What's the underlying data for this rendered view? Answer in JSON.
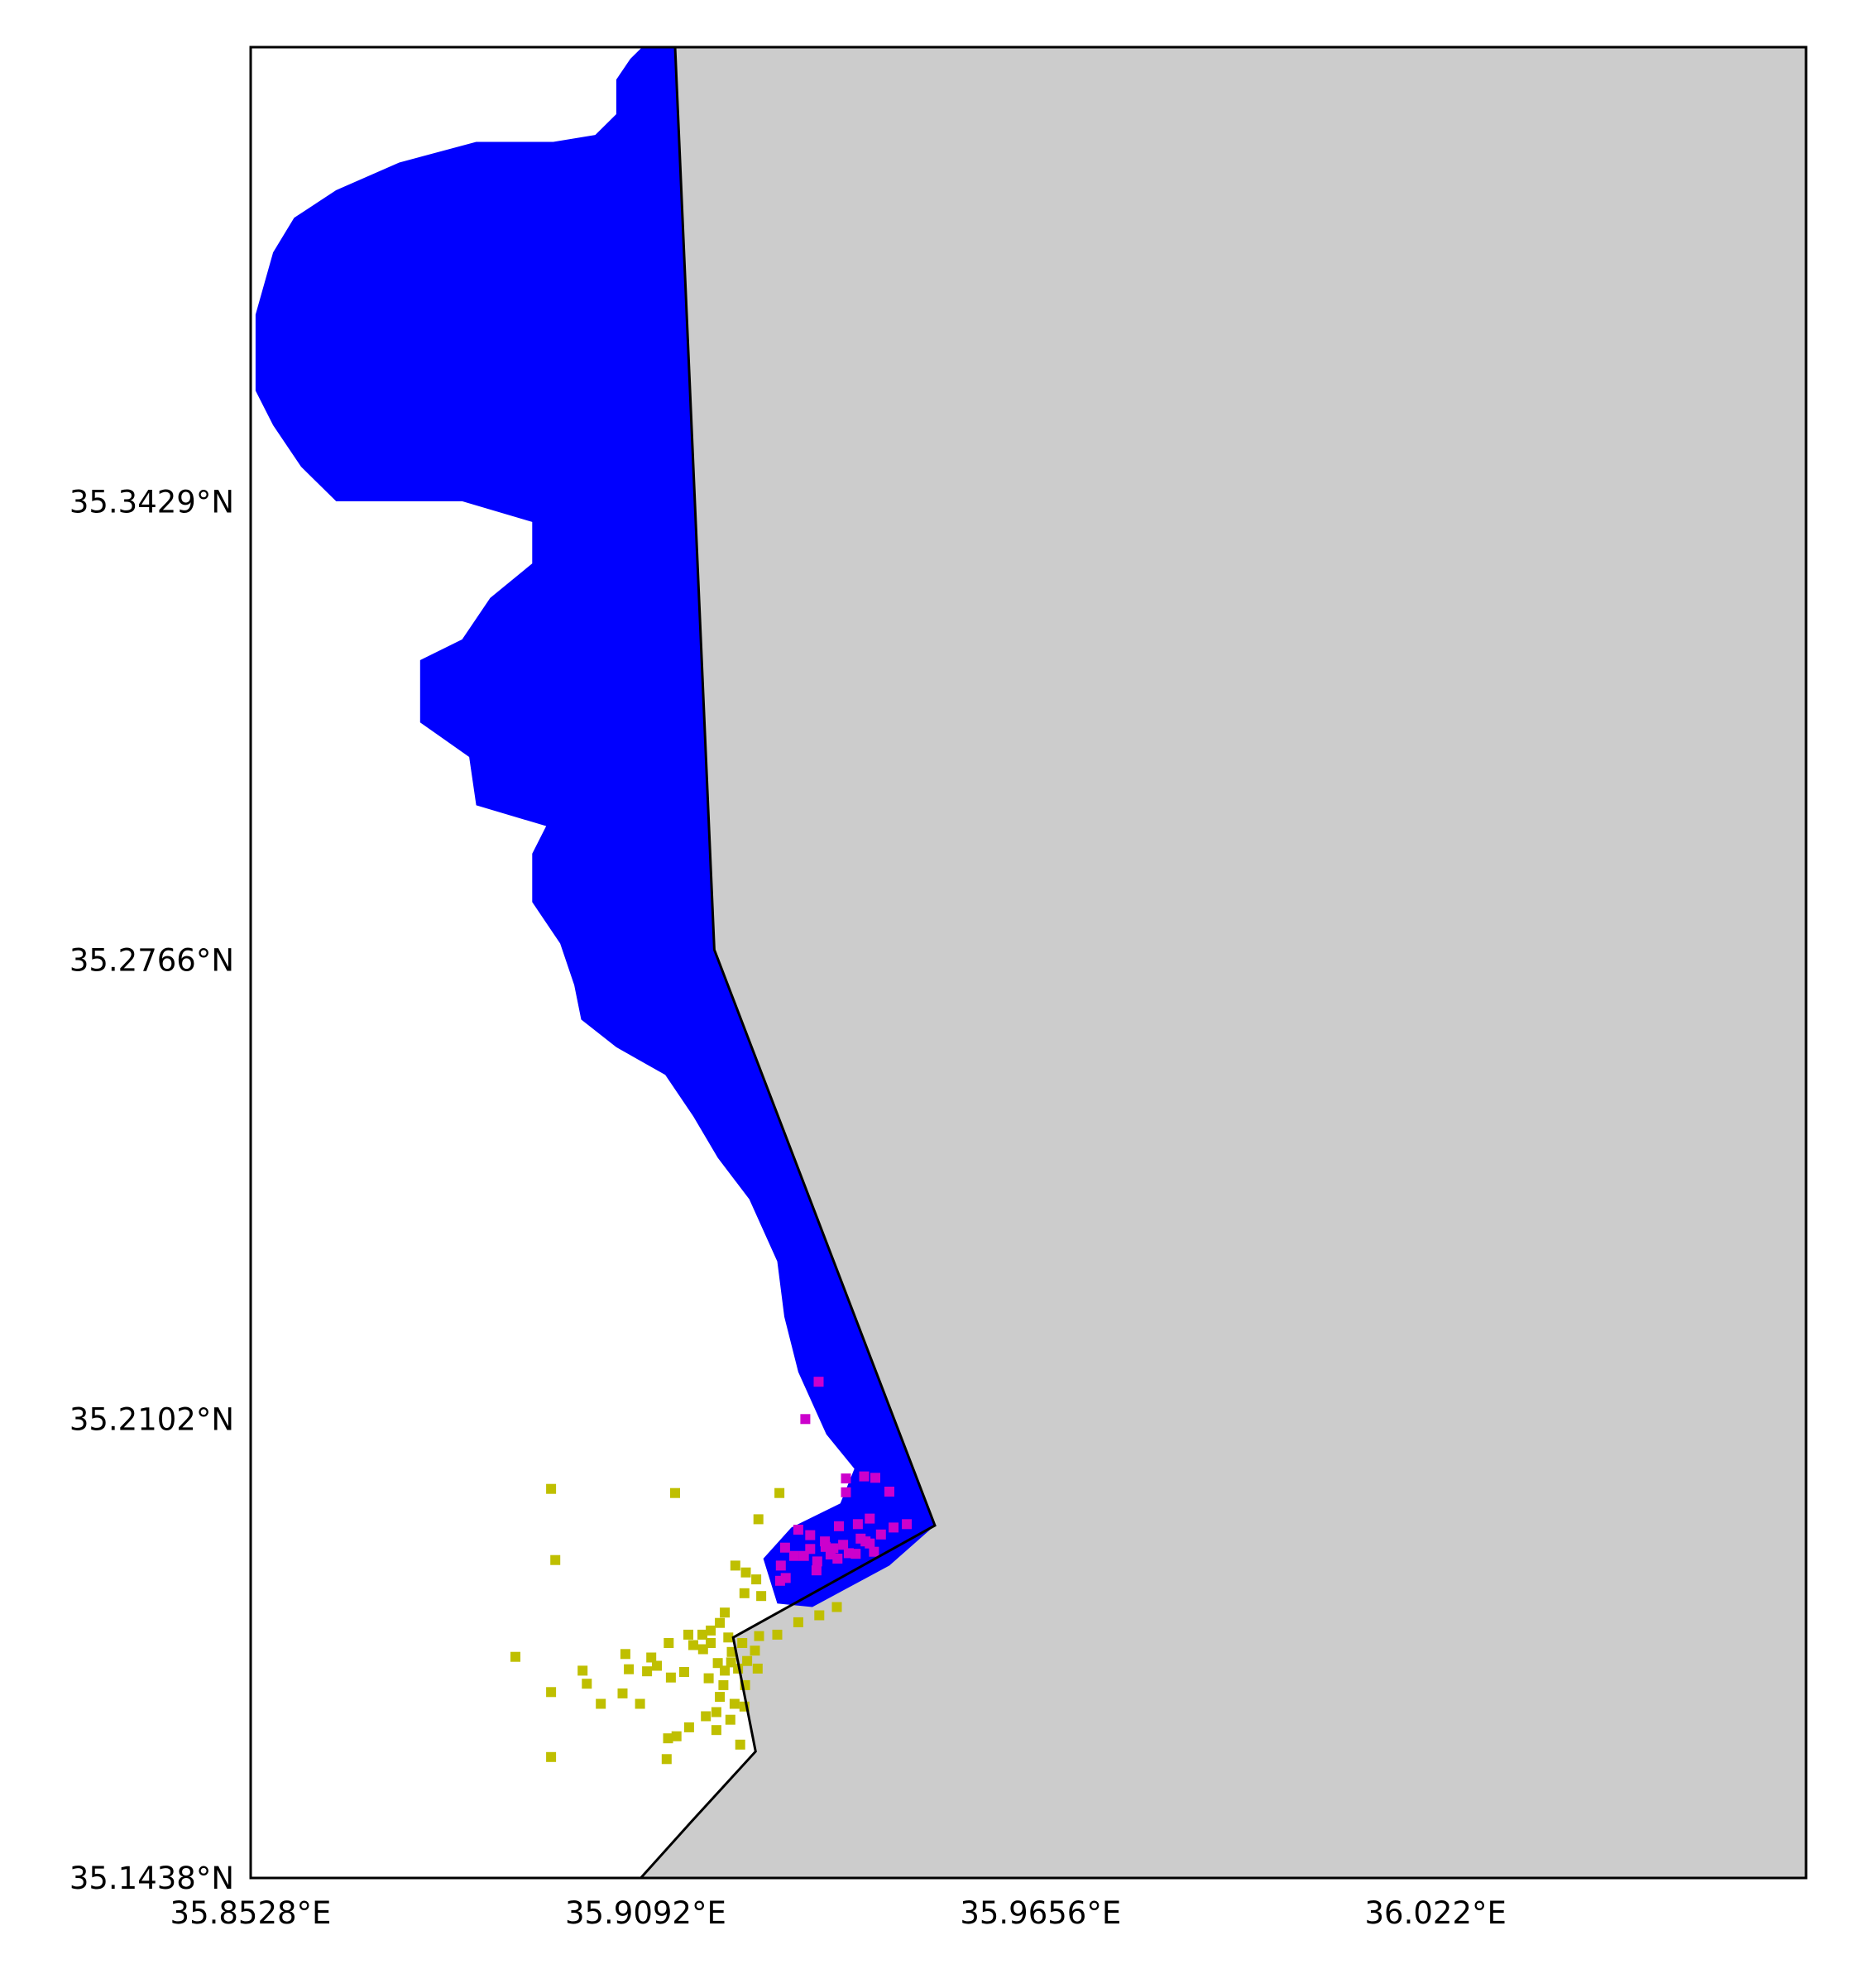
{
  "map": {
    "type": "geographic raster map",
    "projection_frame": "lon/lat",
    "extent": {
      "lon_min": 35.8528,
      "lon_max": 36.0749,
      "lat_min": 35.1438,
      "lat_max": 35.4087
    },
    "x_ticks": [
      {
        "value": 35.8528,
        "label": "35.8528°E"
      },
      {
        "value": 35.9092,
        "label": "35.9092°E"
      },
      {
        "value": 35.9656,
        "label": "35.9656°E"
      },
      {
        "value": 36.022,
        "label": "36.022°E"
      }
    ],
    "y_ticks": [
      {
        "value": 35.3429,
        "label": "35.3429°N"
      },
      {
        "value": 35.2766,
        "label": "35.2766°N"
      },
      {
        "value": 35.2102,
        "label": "35.2102°N"
      },
      {
        "value": 35.1438,
        "label": "35.1438°N"
      }
    ],
    "colors": {
      "land": "#cccccc",
      "water": "#ffffff",
      "class_blue": "#0000ff",
      "class_magenta": "#cc00cc",
      "class_olive": "#bfbf00",
      "coastline": "#000000"
    },
    "coastline_lonlat": [
      [
        35.9134,
        35.4087
      ],
      [
        35.919,
        35.2781
      ],
      [
        35.9505,
        35.1948
      ],
      [
        35.9217,
        35.1786
      ],
      [
        35.9249,
        35.1621
      ],
      [
        35.9157,
        35.1519
      ],
      [
        35.9085,
        35.1438
      ]
    ],
    "legend": "none",
    "grid": false
  },
  "chart_data": {
    "type": "scatter",
    "xlabel": "",
    "ylabel": "",
    "xlim": [
      35.8528,
      36.0749
    ],
    "ylim": [
      35.1438,
      35.4087
    ],
    "series": [
      {
        "color": "#0000ff",
        "description": "contiguous coastal band of classified cells along the shoreline",
        "outline_lonlat": [
          [
            35.9087,
            35.4087
          ],
          [
            35.9134,
            35.4087
          ],
          [
            35.919,
            35.2781
          ],
          [
            35.9505,
            35.1948
          ],
          [
            35.944,
            35.189
          ],
          [
            35.933,
            35.183
          ],
          [
            35.928,
            35.1835
          ],
          [
            35.926,
            35.19
          ],
          [
            35.93,
            35.1945
          ],
          [
            35.937,
            35.198
          ],
          [
            35.939,
            35.203
          ],
          [
            35.935,
            35.208
          ],
          [
            35.931,
            35.217
          ],
          [
            35.929,
            35.225
          ],
          [
            35.928,
            35.233
          ],
          [
            35.924,
            35.242
          ],
          [
            35.9195,
            35.248
          ],
          [
            35.916,
            35.254
          ],
          [
            35.912,
            35.26
          ],
          [
            35.905,
            35.264
          ],
          [
            35.9,
            35.268
          ],
          [
            35.899,
            35.273
          ],
          [
            35.897,
            35.279
          ],
          [
            35.893,
            35.285
          ],
          [
            35.893,
            35.292
          ],
          [
            35.895,
            35.296
          ],
          [
            35.885,
            35.299
          ],
          [
            35.884,
            35.306
          ],
          [
            35.877,
            35.311
          ],
          [
            35.877,
            35.32
          ],
          [
            35.883,
            35.323
          ],
          [
            35.887,
            35.329
          ],
          [
            35.893,
            35.334
          ],
          [
            35.893,
            35.34
          ],
          [
            35.883,
            35.343
          ],
          [
            35.873,
            35.343
          ],
          [
            35.865,
            35.343
          ],
          [
            35.86,
            35.348
          ],
          [
            35.856,
            35.354
          ],
          [
            35.8535,
            35.359
          ],
          [
            35.8535,
            35.37
          ],
          [
            35.856,
            35.379
          ],
          [
            35.859,
            35.384
          ],
          [
            35.865,
            35.388
          ],
          [
            35.874,
            35.392
          ],
          [
            35.885,
            35.395
          ],
          [
            35.896,
            35.395
          ],
          [
            35.902,
            35.396
          ],
          [
            35.905,
            35.399
          ],
          [
            35.905,
            35.404
          ],
          [
            35.907,
            35.407
          ]
        ]
      },
      {
        "color": "#cc00cc",
        "description": "scattered cells inside the southern part of the band",
        "points_lonlat": [
          [
            35.9339,
            35.2156
          ],
          [
            35.932,
            35.2102
          ],
          [
            35.9378,
            35.2016
          ],
          [
            35.9404,
            35.2019
          ],
          [
            35.942,
            35.2017
          ],
          [
            35.9378,
            35.1996
          ],
          [
            35.944,
            35.1997
          ],
          [
            35.9412,
            35.1958
          ],
          [
            35.9446,
            35.1945
          ],
          [
            35.9465,
            35.195
          ],
          [
            35.9428,
            35.1935
          ],
          [
            35.9412,
            35.1922
          ],
          [
            35.9399,
            35.1929
          ],
          [
            35.9368,
            35.1947
          ],
          [
            35.9374,
            35.192
          ],
          [
            35.9382,
            35.1908
          ],
          [
            35.9348,
            35.1925
          ],
          [
            35.9349,
            35.1917
          ],
          [
            35.9356,
            35.1906
          ],
          [
            35.9327,
            35.1914
          ],
          [
            35.9318,
            35.1904
          ],
          [
            35.9336,
            35.1883
          ],
          [
            35.9337,
            35.1896
          ],
          [
            35.9327,
            35.1934
          ],
          [
            35.931,
            35.1942
          ],
          [
            35.9304,
            35.1904
          ],
          [
            35.9291,
            35.1916
          ],
          [
            35.9285,
            35.189
          ],
          [
            35.9284,
            35.1868
          ],
          [
            35.9292,
            35.1872
          ],
          [
            35.936,
            35.1915
          ],
          [
            35.9392,
            35.1907
          ],
          [
            35.9366,
            35.19
          ],
          [
            35.9406,
            35.1925
          ],
          [
            35.9418,
            35.191
          ],
          [
            35.9395,
            35.195
          ]
        ]
      },
      {
        "color": "#bfbf00",
        "description": "scattered cells offshore near the southern end",
        "points_lonlat": [
          [
            35.8957,
            35.2001
          ],
          [
            35.9134,
            35.1995
          ],
          [
            35.9283,
            35.1995
          ],
          [
            35.9253,
            35.1957
          ],
          [
            35.8963,
            35.1898
          ],
          [
            35.922,
            35.189
          ],
          [
            35.9235,
            35.188
          ],
          [
            35.925,
            35.187
          ],
          [
            35.9233,
            35.185
          ],
          [
            35.9257,
            35.1846
          ],
          [
            35.9205,
            35.1822
          ],
          [
            35.9185,
            35.1796
          ],
          [
            35.916,
            35.1775
          ],
          [
            35.9185,
            35.1778
          ],
          [
            35.921,
            35.1786
          ],
          [
            35.923,
            35.1778
          ],
          [
            35.9248,
            35.1767
          ],
          [
            35.9237,
            35.1752
          ],
          [
            35.9252,
            35.1741
          ],
          [
            35.9224,
            35.1741
          ],
          [
            35.9205,
            35.1738
          ],
          [
            35.9214,
            35.175
          ],
          [
            35.9215,
            35.1765
          ],
          [
            35.9195,
            35.1749
          ],
          [
            35.9174,
            35.1769
          ],
          [
            35.9153,
            35.179
          ],
          [
            35.9125,
            35.1778
          ],
          [
            35.91,
            35.1757
          ],
          [
            35.9063,
            35.1762
          ],
          [
            35.8906,
            35.1758
          ],
          [
            35.9002,
            35.1738
          ],
          [
            35.9094,
            35.1737
          ],
          [
            35.9128,
            35.1728
          ],
          [
            35.9147,
            35.1736
          ],
          [
            35.9182,
            35.1727
          ],
          [
            35.9203,
            35.1717
          ],
          [
            35.9234,
            35.1717
          ],
          [
            35.9198,
            35.17
          ],
          [
            35.9219,
            35.169
          ],
          [
            35.9233,
            35.1686
          ],
          [
            35.9193,
            35.1678
          ],
          [
            35.9213,
            35.1667
          ],
          [
            35.9178,
            35.1672
          ],
          [
            35.9084,
            35.169
          ],
          [
            35.9028,
            35.169
          ],
          [
            35.8957,
            35.1707
          ],
          [
            35.9008,
            35.1719
          ],
          [
            35.9059,
            35.1705
          ],
          [
            35.9193,
            35.1652
          ],
          [
            35.9154,
            35.1656
          ],
          [
            35.9124,
            35.164
          ],
          [
            35.9136,
            35.1643
          ],
          [
            35.9227,
            35.1631
          ],
          [
            35.8957,
            35.1613
          ],
          [
            35.9122,
            35.161
          ],
          [
            35.9068,
            35.174
          ],
          [
            35.9108,
            35.1745
          ],
          [
            35.9173,
            35.179
          ],
          [
            35.9198,
            35.1807
          ],
          [
            35.9254,
            35.1788
          ],
          [
            35.928,
            35.179
          ],
          [
            35.931,
            35.1808
          ],
          [
            35.934,
            35.1818
          ],
          [
            35.9365,
            35.183
          ]
        ]
      }
    ]
  }
}
